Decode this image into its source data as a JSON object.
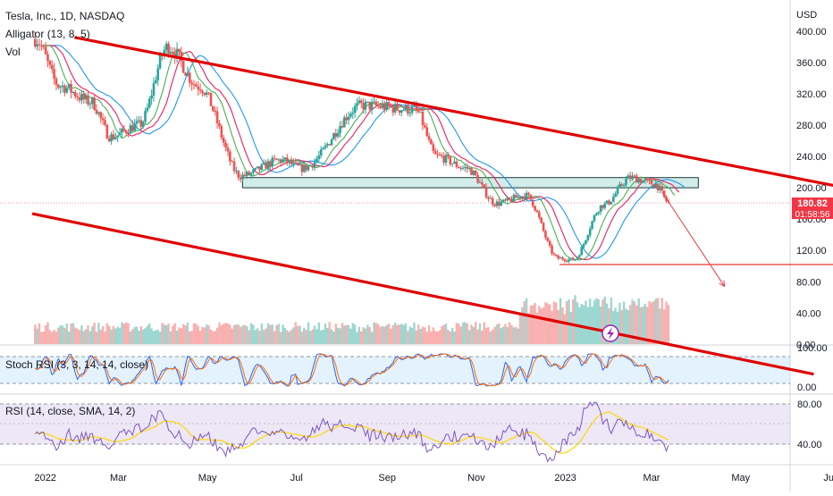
{
  "header": {
    "symbol_line": "Tesla, Inc., 1D, NASDAQ",
    "indicator_alligator": "Alligator (13, 8, 5)",
    "indicator_vol": "Vol"
  },
  "price_scale": {
    "currency": "USD",
    "ticks": [
      "400.00",
      "360.00",
      "320.00",
      "280.00",
      "240.00",
      "200.00",
      "160.00",
      "120.00",
      "80.00",
      "40.00",
      "0.00"
    ],
    "last_price": "180.82",
    "countdown": "01:58:56"
  },
  "stoch_panel": {
    "label": "Stoch RSI (3, 3, 14, 14, close)",
    "ticks": [
      "100.00",
      "0.00"
    ]
  },
  "rsi_panel": {
    "label": "RSI (14, close, SMA, 14, 2)",
    "ticks": [
      "80.00",
      "40.00"
    ]
  },
  "time_axis": {
    "labels": [
      "2022",
      "Mar",
      "May",
      "Jul",
      "Sep",
      "Nov",
      "2023",
      "Mar",
      "May",
      "Jul"
    ]
  },
  "colors": {
    "candle_up": "#26a69a",
    "candle_down": "#ef5350",
    "channel": "#e00000",
    "zone_fill": "#b2dfdb",
    "zone_stroke": "#26a69a",
    "alligator_jaw": "#2196f3",
    "alligator_teeth": "#e91e63",
    "alligator_lips": "#4caf50",
    "stoch_k": "#2962ff",
    "stoch_d": "#ff6d00",
    "rsi_line": "#7e57c2",
    "rsi_ma": "#ffd600",
    "price_label_bg": "#f23645"
  },
  "chart_data": {
    "type": "candlestick",
    "x_range": [
      "2022-01",
      "2023-07"
    ],
    "y_range": [
      0,
      420
    ],
    "price_waypoints": [
      {
        "date": "2022-01-03",
        "close": 390
      },
      {
        "date": "2022-01-20",
        "close": 330
      },
      {
        "date": "2022-02-10",
        "close": 310
      },
      {
        "date": "2022-02-24",
        "close": 265
      },
      {
        "date": "2022-03-15",
        "close": 280
      },
      {
        "date": "2022-04-04",
        "close": 380
      },
      {
        "date": "2022-04-25",
        "close": 330
      },
      {
        "date": "2022-05-24",
        "close": 215
      },
      {
        "date": "2022-06-20",
        "close": 235
      },
      {
        "date": "2022-07-05",
        "close": 225
      },
      {
        "date": "2022-08-15",
        "close": 305
      },
      {
        "date": "2022-09-20",
        "close": 300
      },
      {
        "date": "2022-10-05",
        "close": 240
      },
      {
        "date": "2022-10-25",
        "close": 225
      },
      {
        "date": "2022-11-15",
        "close": 180
      },
      {
        "date": "2022-12-05",
        "close": 190
      },
      {
        "date": "2022-12-27",
        "close": 110
      },
      {
        "date": "2023-01-06",
        "close": 108
      },
      {
        "date": "2023-01-27",
        "close": 178
      },
      {
        "date": "2023-02-15",
        "close": 213
      },
      {
        "date": "2023-03-03",
        "close": 205
      },
      {
        "date": "2023-03-13",
        "close": 181
      }
    ],
    "channel_upper": [
      {
        "date": "2022-01-30",
        "price": 392
      },
      {
        "date": "2023-07-20",
        "price": 197
      }
    ],
    "channel_lower": [
      {
        "date": "2022-01-01",
        "price": 167
      },
      {
        "date": "2023-06-20",
        "price": -38
      }
    ],
    "support_zone": {
      "from": "2022-05-25",
      "to": "2023-04-02",
      "low": 200,
      "high": 213
    },
    "horizontal_line": {
      "from": "2022-12-28",
      "to": "2023-07-15",
      "price": 102
    },
    "projection": [
      {
        "date": "2023-03-08",
        "price": 195
      },
      {
        "date": "2023-04-20",
        "price": 74
      }
    ],
    "indicators": [
      "Alligator (13, 8, 5)",
      "Vol",
      "Stoch RSI (3, 3, 14, 14, close)",
      "RSI (14, close, SMA, 14, 2)"
    ]
  }
}
